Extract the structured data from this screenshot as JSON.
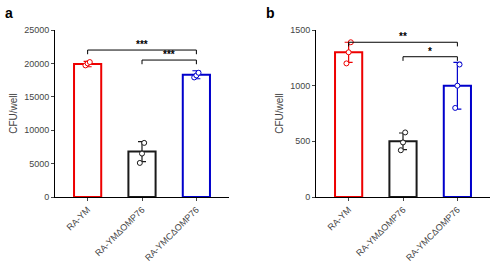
{
  "chart_data": [
    {
      "type": "bar",
      "title": "a",
      "categories": [
        "RA-YM",
        "RA-YMΔOMP76",
        "RA-YMCΔOMP76"
      ],
      "values": [
        19900,
        6800,
        18300
      ],
      "errors": [
        400,
        1500,
        600
      ],
      "points": [
        [
          19700,
          20000,
          20200
        ],
        [
          5100,
          6500,
          8100
        ],
        [
          17900,
          18200,
          18600
        ]
      ],
      "colors": [
        "#EE0000",
        "#1a1a1a",
        "#0000CC"
      ],
      "ylabel": "CFU/well",
      "ylim": [
        0,
        25000
      ],
      "yticks": [
        0,
        5000,
        10000,
        15000,
        20000,
        25000
      ],
      "grid": false,
      "annotations": [
        {
          "from": "RA-YM",
          "to": "RA-YMCΔOMP76",
          "y": 22000,
          "text": "***"
        },
        {
          "from": "RA-YMΔOMP76",
          "to": "RA-YMCΔOMP76",
          "y": 20500,
          "text": "***"
        }
      ]
    },
    {
      "type": "bar",
      "title": "b",
      "categories": [
        "RA-YM",
        "RA-YMΔOMP76",
        "RA-YMCΔOMP76"
      ],
      "values": [
        1300,
        500,
        1000
      ],
      "errors": [
        90,
        75,
        210
      ],
      "points": [
        [
          1200,
          1300,
          1390
        ],
        [
          420,
          490,
          580
        ],
        [
          800,
          1000,
          1190
        ]
      ],
      "colors": [
        "#EE0000",
        "#1a1a1a",
        "#0000CC"
      ],
      "ylabel": "CFU/well",
      "ylim": [
        0,
        1500
      ],
      "yticks": [
        0,
        500,
        1000,
        1500
      ],
      "grid": false,
      "annotations": [
        {
          "from": "RA-YM",
          "to": "RA-YMCΔOMP76",
          "y": 1390,
          "text": "**"
        },
        {
          "from": "RA-YMΔOMP76",
          "to": "RA-YMCΔOMP76",
          "y": 1260,
          "text": "*"
        }
      ]
    }
  ]
}
